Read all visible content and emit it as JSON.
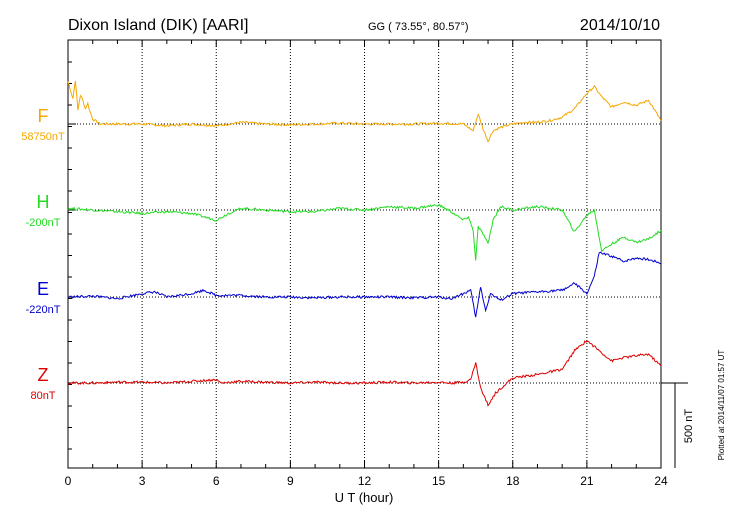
{
  "header": {
    "station": "Dixon Island (DIK)  [AARI]",
    "coords": "GG ( 73.55°,  80.57°)",
    "date": "2014/10/10"
  },
  "footer": {
    "plotted": "Plotted at 2014/11/07 01:57 UT"
  },
  "chart_data": {
    "type": "line",
    "title": "Dixon Island (DIK)  [AARI]",
    "xlabel": "U T (hour)",
    "xlim": [
      0,
      24
    ],
    "xticks": [
      "0",
      "3",
      "6",
      "9",
      "12",
      "15",
      "18",
      "21",
      "24"
    ],
    "scale_bar_label": "500 nT",
    "scale_bar_nT": 500,
    "baseline_spacing_nT": 500,
    "series": [
      {
        "name": "F",
        "baseline": "58750nT",
        "color": "#f5a800",
        "x": [
          0,
          0.1,
          0.2,
          0.3,
          0.4,
          0.5,
          0.6,
          0.7,
          0.8,
          0.9,
          1.0,
          1.1,
          1.3,
          1.6,
          2,
          3,
          4,
          5,
          6,
          7,
          8,
          9,
          10,
          11,
          12,
          13,
          14,
          15,
          16,
          16.4,
          16.6,
          16.8,
          17.0,
          17.2,
          17.5,
          18,
          18.5,
          19,
          19.5,
          20,
          20.5,
          21,
          21.3,
          21.6,
          22,
          22.5,
          23,
          23.5,
          24
        ],
        "values": [
          250,
          200,
          150,
          260,
          80,
          170,
          140,
          90,
          120,
          70,
          30,
          20,
          0,
          0,
          0,
          0,
          -10,
          0,
          -10,
          10,
          0,
          -5,
          0,
          5,
          0,
          0,
          0,
          5,
          0,
          -40,
          60,
          -30,
          -100,
          -40,
          -20,
          0,
          10,
          10,
          20,
          40,
          90,
          180,
          220,
          160,
          100,
          130,
          110,
          140,
          20
        ]
      },
      {
        "name": "H",
        "baseline": "-200nT",
        "color": "#22dd22",
        "x": [
          0,
          1,
          2,
          3,
          4,
          5,
          6,
          6.5,
          7,
          8,
          9,
          10,
          11,
          12,
          13,
          14,
          15,
          15.5,
          16,
          16.2,
          16.4,
          16.5,
          16.6,
          16.8,
          17,
          17.2,
          17.5,
          18,
          19,
          20,
          20.5,
          21,
          21.3,
          21.6,
          22,
          22.5,
          23,
          23.5,
          24
        ],
        "values": [
          10,
          0,
          -10,
          -20,
          -10,
          -20,
          -60,
          -20,
          10,
          0,
          -10,
          -10,
          10,
          0,
          20,
          10,
          30,
          -10,
          -60,
          -40,
          -120,
          -300,
          -100,
          -140,
          -200,
          -60,
          20,
          0,
          20,
          0,
          -130,
          -30,
          0,
          -240,
          -200,
          -160,
          -190,
          -170,
          -120
        ]
      },
      {
        "name": "E",
        "baseline": "-220nT",
        "color": "#0000d0",
        "x": [
          0,
          1,
          2,
          3,
          3.5,
          4,
          5,
          5.5,
          6,
          7,
          8,
          9,
          10,
          11,
          12,
          13,
          14,
          15,
          15.5,
          16,
          16.3,
          16.5,
          16.7,
          16.9,
          17.1,
          17.5,
          18,
          19,
          20,
          20.5,
          21,
          21.3,
          21.5,
          22,
          22.5,
          23,
          23.5,
          24
        ],
        "values": [
          0,
          5,
          -10,
          20,
          30,
          0,
          20,
          40,
          10,
          10,
          0,
          0,
          -5,
          0,
          0,
          0,
          -5,
          0,
          -10,
          20,
          40,
          -120,
          60,
          -80,
          20,
          -20,
          20,
          30,
          40,
          80,
          20,
          120,
          260,
          240,
          210,
          230,
          220,
          200
        ]
      },
      {
        "name": "Z",
        "baseline": "80nT",
        "color": "#dd0000",
        "x": [
          0,
          1,
          2,
          3,
          4,
          5,
          6,
          6.2,
          7,
          8,
          9,
          10,
          11,
          12,
          13,
          14,
          15,
          15.5,
          16,
          16.3,
          16.5,
          16.7,
          17,
          17.3,
          17.6,
          18,
          19,
          20,
          20.5,
          21,
          21.5,
          22,
          22.5,
          23,
          23.5,
          24
        ],
        "values": [
          0,
          0,
          5,
          5,
          0,
          10,
          20,
          0,
          10,
          5,
          0,
          5,
          0,
          0,
          5,
          0,
          5,
          0,
          5,
          20,
          120,
          -30,
          -130,
          -60,
          -20,
          30,
          50,
          80,
          190,
          250,
          190,
          130,
          150,
          160,
          170,
          100
        ]
      }
    ]
  }
}
